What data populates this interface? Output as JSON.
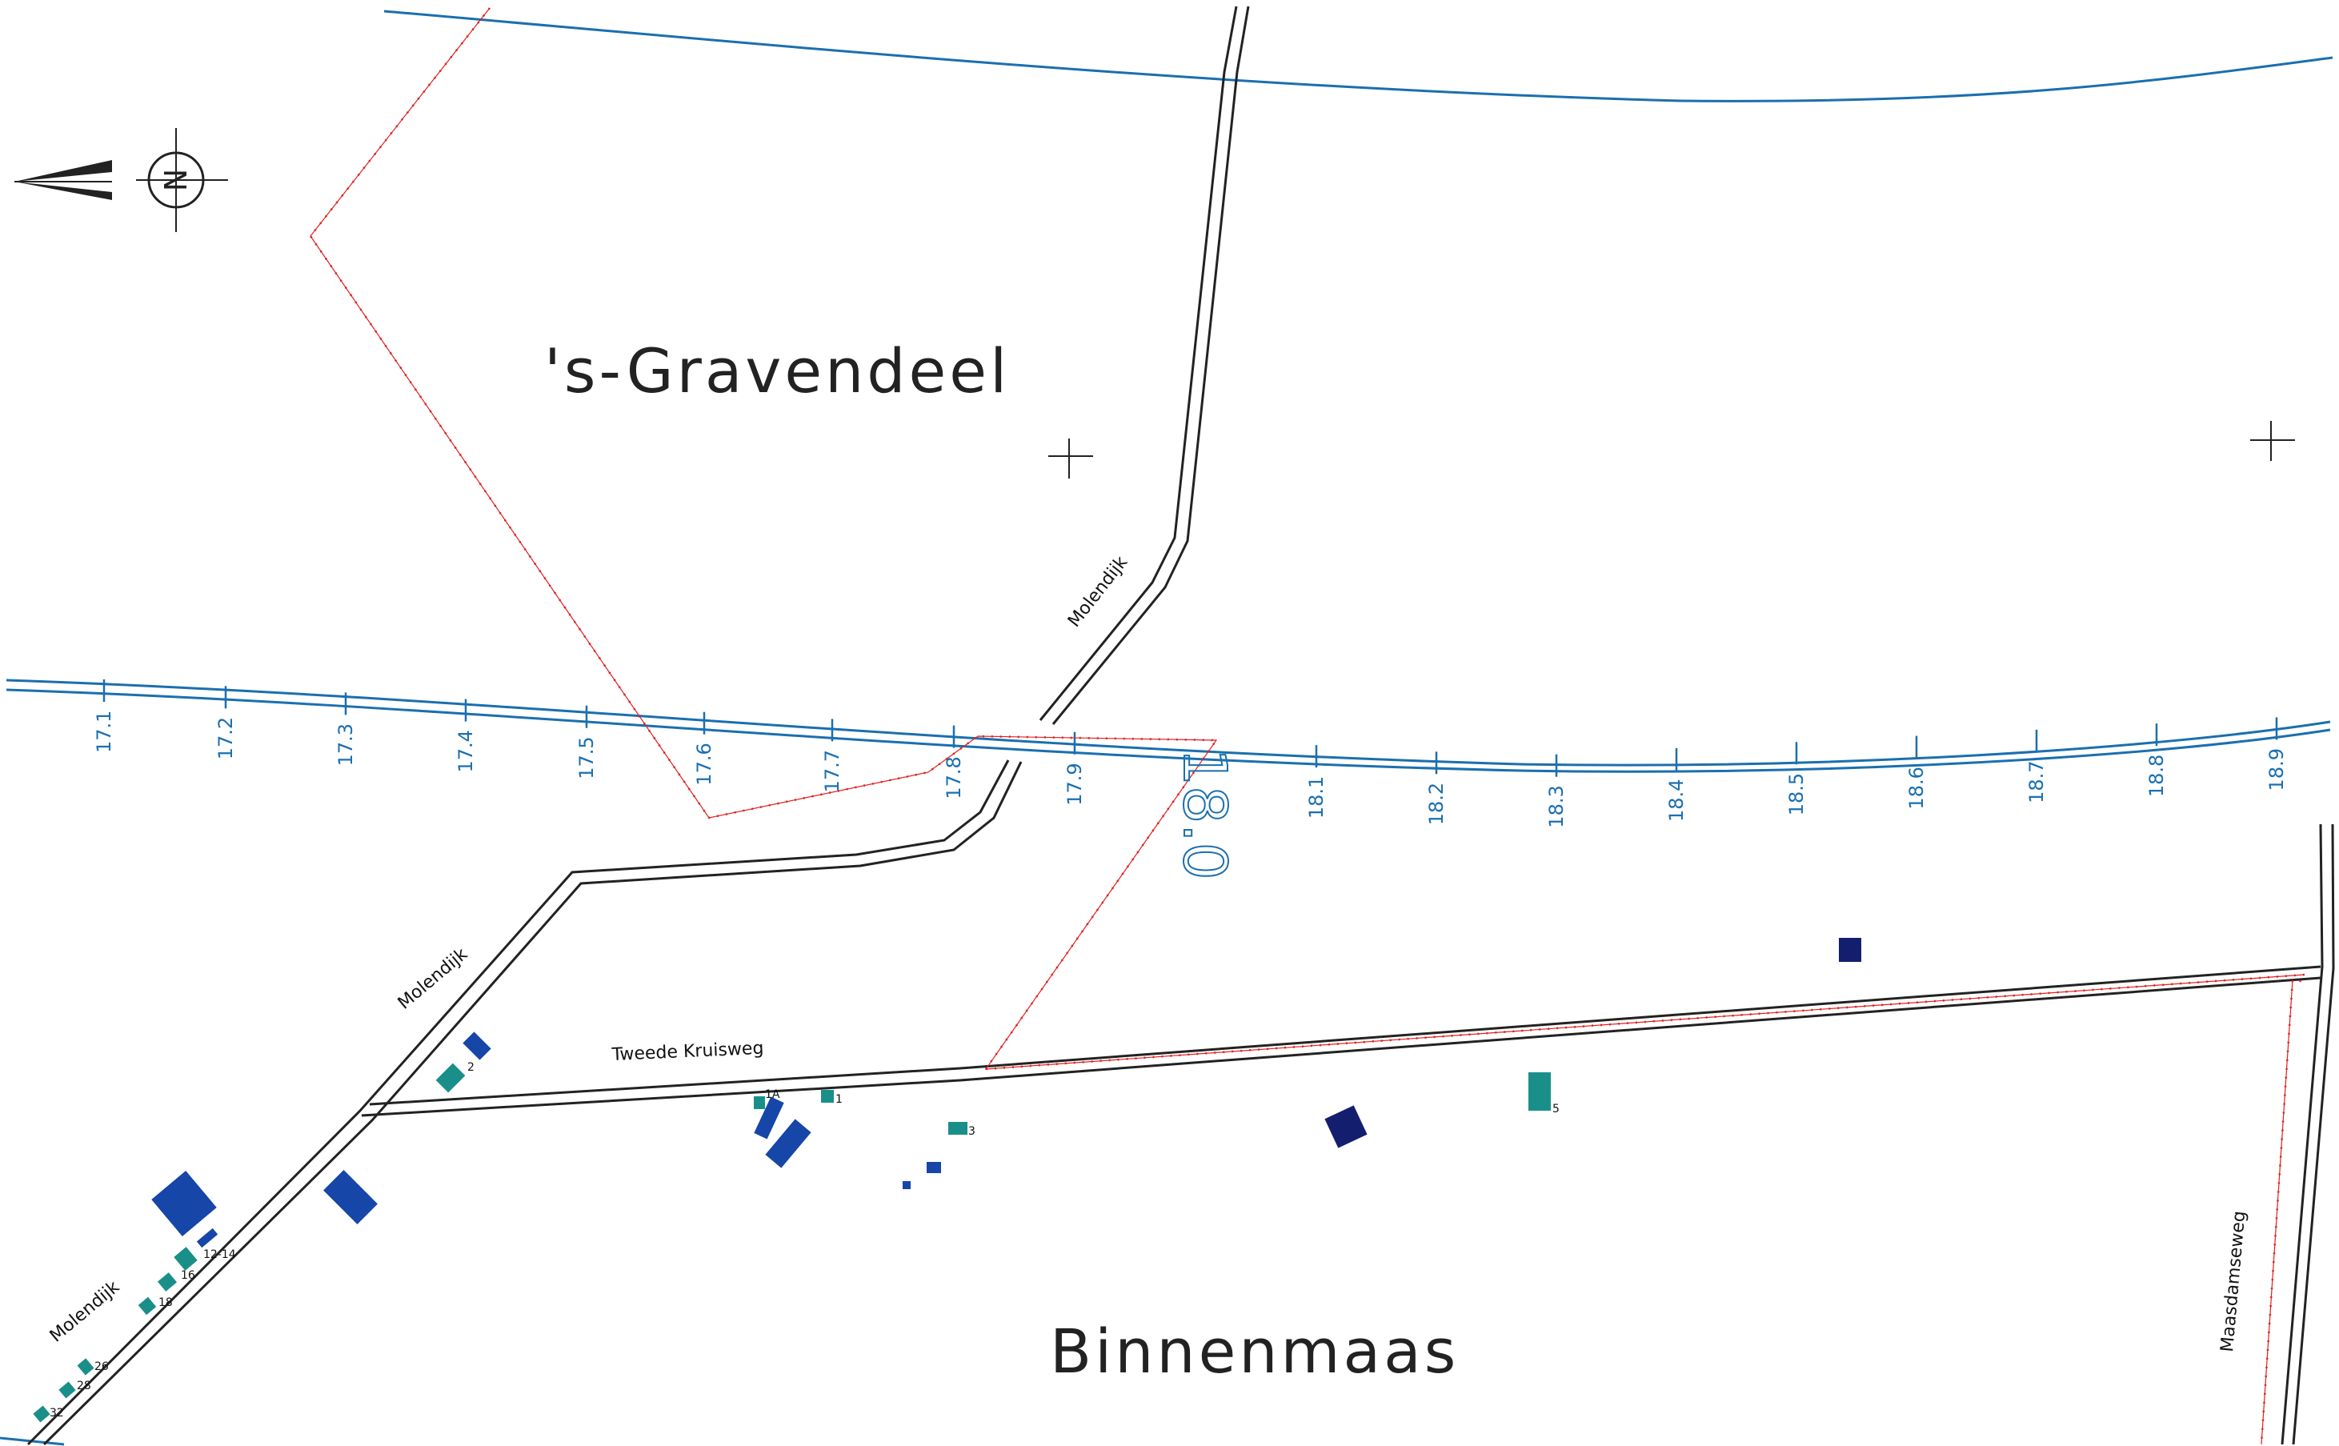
{
  "north_arrow": {
    "letter": "N"
  },
  "municipalities": {
    "north": "'s-Gravendeel",
    "south": "Binnenmaas"
  },
  "big_km_label": "18.0",
  "roads": {
    "molendijk_north": "Molendijk",
    "molendijk_mid": "Molendijk",
    "molendijk_south": "Molendijk",
    "tweede_kruisweg": "Tweede Kruisweg",
    "maasdamseweg": "Maasdamseweg"
  },
  "km_ticks": [
    "17.1",
    "17.2",
    "17.3",
    "17.4",
    "17.5",
    "17.6",
    "17.7",
    "17.8",
    "17.9",
    "18.1",
    "18.2",
    "18.3",
    "18.4",
    "18.5",
    "18.6",
    "18.7",
    "18.8",
    "18.9"
  ],
  "buildings": {
    "b1": "1",
    "b1a": "1A",
    "b2": "2",
    "b3": "3",
    "b5": "5",
    "b12_14": "12-14",
    "b16": "16",
    "b18": "18",
    "b26": "26",
    "b28": "28",
    "b32": "32"
  },
  "colors": {
    "canal": "#1a6fb0",
    "boundary": "#e02020",
    "road": "#222222",
    "building_teal": "#1a8f8a",
    "building_blue": "#1546a8",
    "building_navy": "#141e6e"
  }
}
